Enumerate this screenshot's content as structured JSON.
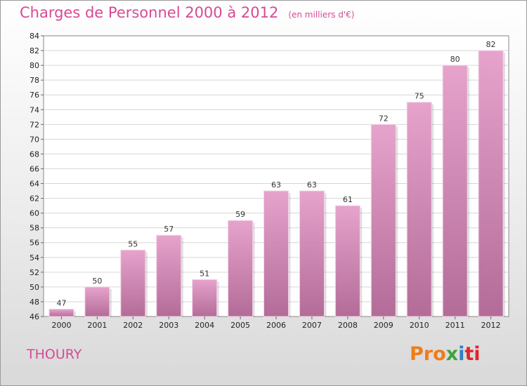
{
  "header": {
    "title": "Charges de Personnel 2000 à 2012",
    "subtitle": "(en milliers d'€)"
  },
  "footer": {
    "town": "THOURY",
    "logo_parts": [
      "Pro",
      "x",
      "i",
      "ti"
    ]
  },
  "colors": {
    "accent": "#d74a94",
    "bar_top": "#e6a3cc",
    "bar_bottom": "#b36c98"
  },
  "chart_data": {
    "type": "bar",
    "title": "Charges de Personnel 2000 à 2012",
    "ylabel": "en milliers d'€",
    "categories": [
      "2000",
      "2001",
      "2002",
      "2003",
      "2004",
      "2005",
      "2006",
      "2007",
      "2008",
      "2009",
      "2010",
      "2011",
      "2012"
    ],
    "values": [
      47,
      50,
      55,
      57,
      51,
      59,
      63,
      63,
      61,
      72,
      75,
      80,
      82
    ],
    "ylim": [
      46,
      84
    ],
    "yticks": [
      46,
      48,
      50,
      52,
      54,
      56,
      58,
      60,
      62,
      64,
      66,
      68,
      70,
      72,
      74,
      76,
      78,
      80,
      82,
      84
    ],
    "grid": true
  }
}
